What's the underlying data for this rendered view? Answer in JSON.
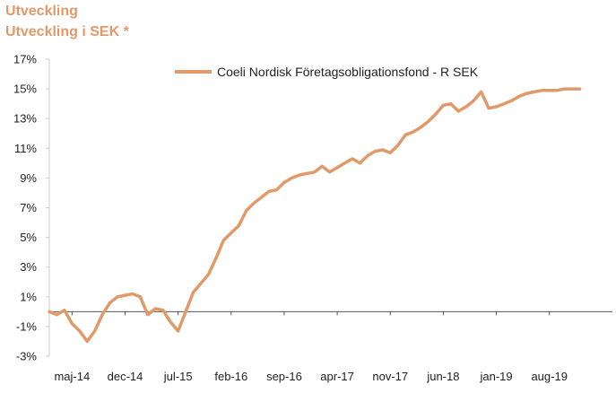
{
  "header": {
    "title": "Utveckling",
    "subtitle": "Utveckling i SEK *"
  },
  "colors": {
    "line": "#e09a6a",
    "axis": "#cccccc",
    "zero": "#555555"
  },
  "chart_data": {
    "type": "line",
    "title": "Utveckling",
    "subtitle": "Utveckling i SEK *",
    "y_ticks": [
      "17%",
      "15%",
      "13%",
      "11%",
      "9%",
      "7%",
      "5%",
      "3%",
      "1%",
      "-1%",
      "-3%"
    ],
    "x_ticks": [
      "maj-14",
      "dec-14",
      "jul-15",
      "feb-16",
      "sep-16",
      "apr-17",
      "nov-17",
      "jun-18",
      "jan-19",
      "aug-19"
    ],
    "ylim": [
      -3,
      17
    ],
    "grid": false,
    "legend_position": "top-right",
    "series": [
      {
        "name": "Coeli Nordisk Företagsobligationsfond - R SEK",
        "x": [
          "2014-02",
          "2014-03",
          "2014-04",
          "2014-05",
          "2014-06",
          "2014-07",
          "2014-08",
          "2014-09",
          "2014-10",
          "2014-11",
          "2014-12",
          "2015-01",
          "2015-02",
          "2015-03",
          "2015-04",
          "2015-05",
          "2015-06",
          "2015-07",
          "2015-08",
          "2015-09",
          "2015-10",
          "2015-11",
          "2015-12",
          "2016-01",
          "2016-02",
          "2016-03",
          "2016-04",
          "2016-05",
          "2016-06",
          "2016-07",
          "2016-08",
          "2016-09",
          "2016-10",
          "2016-11",
          "2016-12",
          "2017-01",
          "2017-02",
          "2017-03",
          "2017-04",
          "2017-05",
          "2017-06",
          "2017-07",
          "2017-08",
          "2017-09",
          "2017-10",
          "2017-11",
          "2017-12",
          "2018-01",
          "2018-02",
          "2018-03",
          "2018-04",
          "2018-05",
          "2018-06",
          "2018-07",
          "2018-08",
          "2018-09",
          "2018-10",
          "2018-11",
          "2018-12",
          "2019-01",
          "2019-02",
          "2019-03",
          "2019-04",
          "2019-05",
          "2019-06",
          "2019-07",
          "2019-08",
          "2019-09",
          "2019-10",
          "2019-11",
          "2019-12"
        ],
        "values": [
          0.0,
          -0.2,
          0.1,
          -0.8,
          -1.3,
          -2.0,
          -1.3,
          -0.2,
          0.6,
          1.0,
          1.1,
          1.2,
          1.0,
          -0.2,
          0.2,
          0.1,
          -0.7,
          -1.3,
          0.0,
          1.3,
          1.9,
          2.5,
          3.6,
          4.8,
          5.3,
          5.8,
          6.8,
          7.3,
          7.7,
          8.1,
          8.2,
          8.7,
          9.0,
          9.2,
          9.3,
          9.4,
          9.8,
          9.4,
          9.7,
          10.0,
          10.3,
          10.0,
          10.5,
          10.8,
          10.9,
          10.7,
          11.2,
          11.9,
          12.1,
          12.4,
          12.8,
          13.3,
          13.9,
          14.0,
          13.5,
          13.8,
          14.2,
          14.8,
          13.7,
          13.8,
          14.0,
          14.2,
          14.5,
          14.7,
          14.8,
          14.9,
          14.9,
          14.9,
          15.0,
          15.0,
          15.0
        ]
      }
    ]
  }
}
